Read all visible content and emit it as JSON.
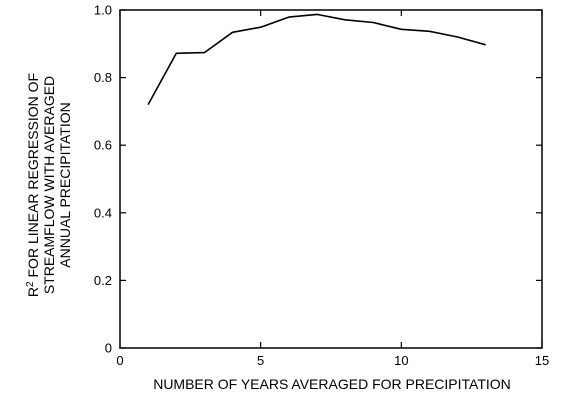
{
  "chart_data": {
    "type": "line",
    "xlabel": "NUMBER OF YEARS AVERAGED FOR PRECIPITATION",
    "ylabel": {
      "line1_main": "R",
      "line1_sup": "2",
      "line1_rest": " FOR LINEAR REGRESSION OF",
      "line2": "STREAMFLOW WITH AVERAGED",
      "line3": "ANNUAL PRECIPITATION"
    },
    "xlim": [
      0,
      15
    ],
    "ylim": [
      0,
      1.0
    ],
    "xticks": [
      0,
      5,
      10,
      15
    ],
    "xtick_labels": [
      "0",
      "5",
      "10",
      "15"
    ],
    "yticks": [
      0,
      0.2,
      0.4,
      0.6,
      0.8,
      1.0
    ],
    "ytick_labels": [
      "0",
      "0.2",
      "0.4",
      "0.6",
      "0.8",
      "1.0"
    ],
    "grid": false,
    "series": [
      {
        "x": [
          1,
          2,
          3,
          4,
          5,
          6,
          7,
          8,
          9,
          10,
          11,
          12,
          13
        ],
        "y": [
          0.72,
          0.872,
          0.874,
          0.934,
          0.949,
          0.979,
          0.987,
          0.971,
          0.963,
          0.943,
          0.937,
          0.92,
          0.897
        ]
      }
    ]
  }
}
